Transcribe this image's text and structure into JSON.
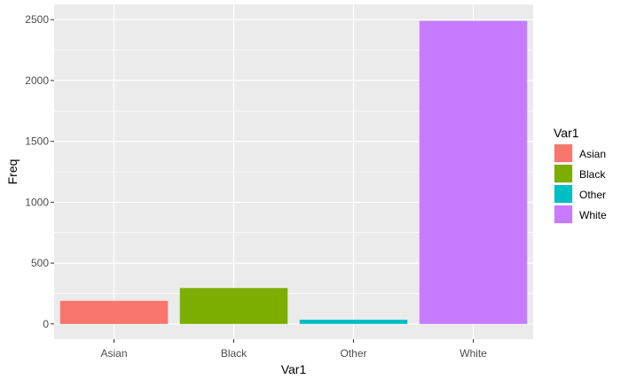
{
  "chart_data": {
    "type": "bar",
    "categories": [
      "Asian",
      "Black",
      "Other",
      "White"
    ],
    "values": [
      190,
      295,
      35,
      2490
    ],
    "colors": [
      "#F8766D",
      "#7CAE00",
      "#00BFC4",
      "#C77CFF"
    ],
    "xlabel": "Var1",
    "ylabel": "Freq",
    "ylim": [
      -125,
      2625
    ],
    "yticks": [
      0,
      500,
      1000,
      1500,
      2000,
      2500
    ],
    "grid": true,
    "legend": {
      "title": "Var1",
      "position": "right",
      "items": [
        "Asian",
        "Black",
        "Other",
        "White"
      ]
    },
    "panel_background": "#EBEBEB",
    "grid_color": "#FFFFFF"
  }
}
